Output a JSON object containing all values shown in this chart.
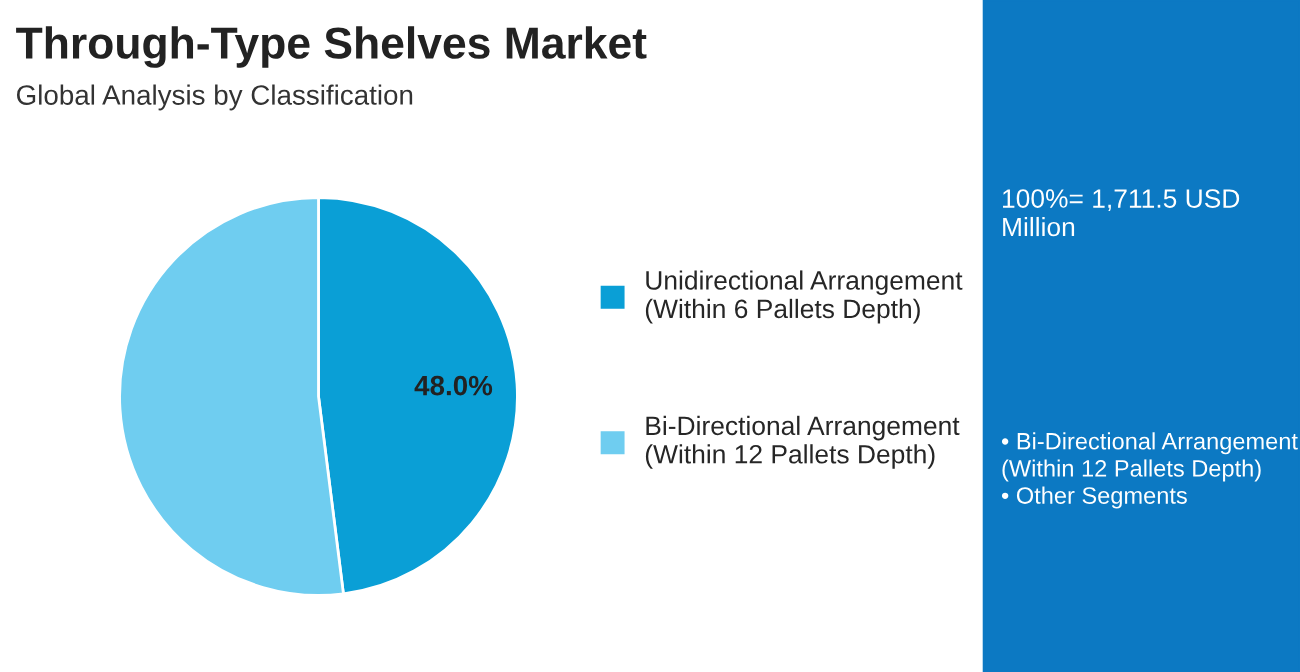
{
  "chart_data": {
    "type": "pie",
    "title": "Through-Type Shelves Market",
    "subtitle": "Global Analysis by Classification",
    "categories": [
      "Unidirectional Arrangement\n(Within 6 Pallets Depth)",
      "Bi-Directional Arrangement\n(Within 12 Pallets Depth)"
    ],
    "values": [
      48.0,
      52.0
    ],
    "colors": [
      "#0a9fd6",
      "#6fcdf0"
    ],
    "value_labels": [
      "48.0%",
      null
    ],
    "legend": "right",
    "annotations": [
      "100%= 1,711.5 USD Million",
      "• Bi-Directional Arrangement (Within 12 Pallets Depth)\n• Other Segments"
    ]
  }
}
